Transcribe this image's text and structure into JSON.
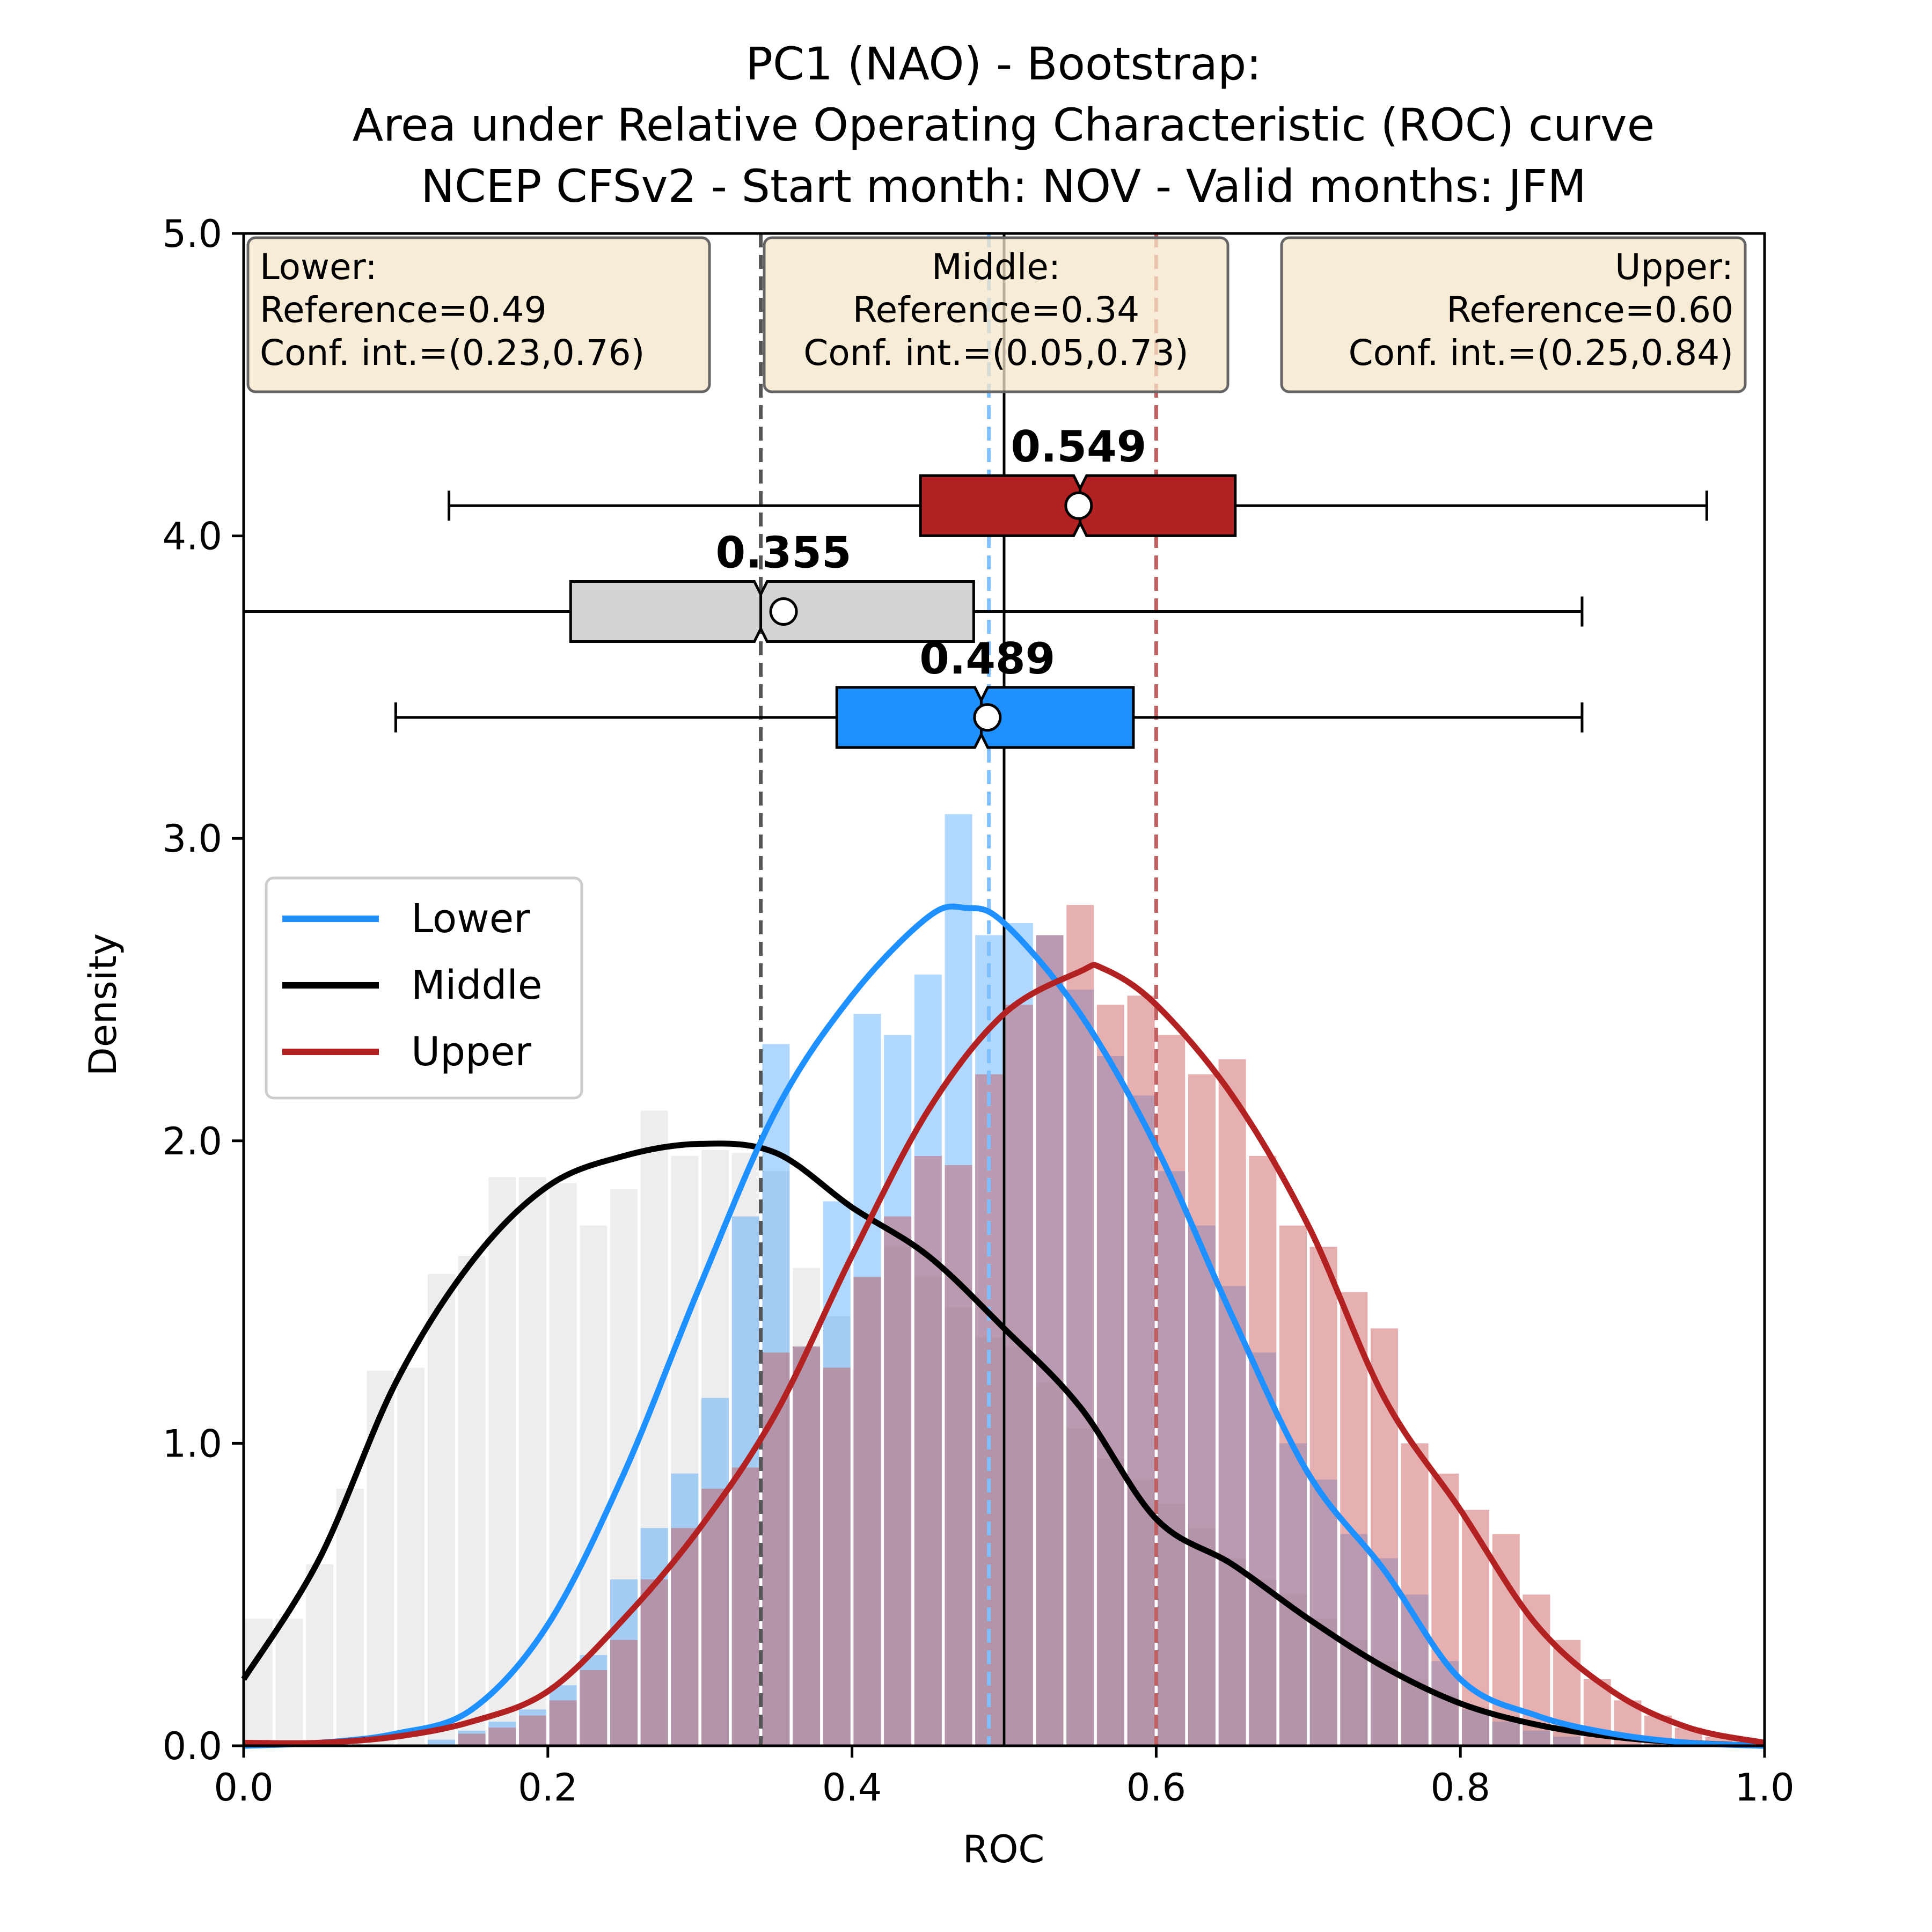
{
  "chart_data": {
    "type": "histogram+kde+boxplot",
    "title_lines": [
      "PC1 (NAO) - Bootstrap:",
      "Area under Relative Operating Characteristic (ROC) curve",
      "NCEP CFSv2 - Start month: NOV - Valid months: JFM"
    ],
    "xlabel": "ROC",
    "ylabel": "Density",
    "xlim": [
      0.0,
      1.0
    ],
    "ylim": [
      0.0,
      5.0
    ],
    "x_ticks": [
      "0.0",
      "0.2",
      "0.4",
      "0.6",
      "0.8",
      "1.0"
    ],
    "y_ticks": [
      "0.0",
      "1.0",
      "2.0",
      "3.0",
      "4.0",
      "5.0"
    ],
    "reference_line": 0.5,
    "legend": {
      "placement": "center-left",
      "entries": [
        {
          "label": "Lower",
          "color": "#1e90ff"
        },
        {
          "label": "Middle",
          "color": "#000000"
        },
        {
          "label": "Upper",
          "color": "#b22222"
        }
      ]
    },
    "info_boxes": [
      {
        "align": "left",
        "lines": [
          "Lower:",
          "Reference=0.49",
          "Conf. int.=(0.23,0.76)"
        ]
      },
      {
        "align": "center",
        "lines": [
          "Middle:",
          "Reference=0.34",
          "Conf. int.=(0.05,0.73)"
        ]
      },
      {
        "align": "right",
        "lines": [
          "Upper:",
          "Reference=0.60",
          "Conf. int.=(0.25,0.84)"
        ]
      }
    ],
    "histogram_bin_width": 0.02,
    "series": [
      {
        "name": "Middle",
        "color": "#000000",
        "hist_color": "#d3d3d3",
        "hist_opacity": 0.4,
        "reference": 0.34,
        "reference_color": "#555555",
        "hist_x": [
          0.01,
          0.03,
          0.05,
          0.07,
          0.09,
          0.11,
          0.13,
          0.15,
          0.17,
          0.19,
          0.21,
          0.23,
          0.25,
          0.27,
          0.29,
          0.31,
          0.33,
          0.35,
          0.37,
          0.39,
          0.41,
          0.43,
          0.45,
          0.47,
          0.49,
          0.51,
          0.53,
          0.55,
          0.57,
          0.59,
          0.61,
          0.63,
          0.65,
          0.67,
          0.69,
          0.71,
          0.73,
          0.75,
          0.77,
          0.79,
          0.81,
          0.83,
          0.85,
          0.87,
          0.89
        ],
        "hist_values": [
          0.42,
          0.42,
          0.6,
          0.85,
          1.24,
          1.25,
          1.56,
          1.62,
          1.88,
          1.88,
          1.86,
          1.72,
          1.84,
          2.1,
          1.95,
          1.97,
          1.96,
          1.9,
          1.58,
          1.42,
          1.55,
          1.65,
          1.55,
          1.45,
          1.35,
          1.32,
          1.2,
          1.05,
          0.95,
          0.88,
          0.8,
          0.72,
          0.62,
          0.55,
          0.5,
          0.42,
          0.35,
          0.28,
          0.22,
          0.17,
          0.13,
          0.1,
          0.07,
          0.05,
          0.03
        ],
        "kde_x": [
          0.0,
          0.05,
          0.1,
          0.15,
          0.2,
          0.25,
          0.3,
          0.35,
          0.4,
          0.45,
          0.5,
          0.55,
          0.6,
          0.65,
          0.7,
          0.75,
          0.8,
          0.85,
          0.9,
          0.95,
          1.0
        ],
        "kde_y": [
          0.22,
          0.62,
          1.2,
          1.6,
          1.85,
          1.95,
          1.99,
          1.96,
          1.78,
          1.62,
          1.38,
          1.12,
          0.75,
          0.6,
          0.42,
          0.26,
          0.14,
          0.07,
          0.03,
          0.01,
          0.0
        ],
        "box": {
          "whisker_low": 0.0,
          "q1": 0.215,
          "median": 0.34,
          "mean": 0.355,
          "q3": 0.48,
          "whisker_high": 0.88,
          "y": 3.75,
          "label": "0.355"
        }
      },
      {
        "name": "Lower",
        "color": "#1e90ff",
        "hist_color": "#1e90ff",
        "hist_opacity": 0.35,
        "reference": 0.49,
        "reference_color": "#7fbfff",
        "hist_x": [
          0.13,
          0.15,
          0.17,
          0.19,
          0.21,
          0.23,
          0.25,
          0.27,
          0.29,
          0.31,
          0.33,
          0.35,
          0.37,
          0.39,
          0.41,
          0.43,
          0.45,
          0.47,
          0.49,
          0.51,
          0.53,
          0.55,
          0.57,
          0.59,
          0.61,
          0.63,
          0.65,
          0.67,
          0.69,
          0.71,
          0.73,
          0.75,
          0.77,
          0.79,
          0.81,
          0.83,
          0.85,
          0.87
        ],
        "hist_values": [
          0.02,
          0.05,
          0.08,
          0.12,
          0.2,
          0.3,
          0.55,
          0.72,
          0.9,
          1.15,
          1.75,
          2.32,
          1.32,
          1.8,
          2.42,
          2.35,
          2.55,
          3.08,
          2.68,
          2.72,
          2.68,
          2.5,
          2.28,
          2.15,
          1.9,
          1.72,
          1.52,
          1.3,
          1.0,
          0.88,
          0.7,
          0.62,
          0.5,
          0.28,
          0.12,
          0.08,
          0.05,
          0.03
        ],
        "kde_x": [
          0.0,
          0.05,
          0.1,
          0.15,
          0.2,
          0.25,
          0.3,
          0.35,
          0.4,
          0.45,
          0.475,
          0.5,
          0.55,
          0.6,
          0.65,
          0.7,
          0.75,
          0.8,
          0.85,
          0.9,
          0.95,
          1.0
        ],
        "kde_y": [
          0.0,
          0.01,
          0.04,
          0.12,
          0.4,
          0.9,
          1.52,
          2.1,
          2.48,
          2.74,
          2.77,
          2.72,
          2.42,
          1.98,
          1.42,
          0.9,
          0.58,
          0.22,
          0.1,
          0.04,
          0.01,
          0.0
        ],
        "box": {
          "whisker_low": 0.1,
          "q1": 0.39,
          "median": 0.485,
          "mean": 0.489,
          "q3": 0.585,
          "whisker_high": 0.88,
          "y": 3.4,
          "label": "0.489"
        }
      },
      {
        "name": "Upper",
        "color": "#b22222",
        "hist_color": "#c85050",
        "hist_opacity": 0.45,
        "reference": 0.6,
        "reference_color": "#c06060",
        "hist_x": [
          0.15,
          0.17,
          0.19,
          0.21,
          0.23,
          0.25,
          0.27,
          0.29,
          0.31,
          0.33,
          0.35,
          0.37,
          0.39,
          0.41,
          0.43,
          0.45,
          0.47,
          0.49,
          0.51,
          0.53,
          0.55,
          0.57,
          0.59,
          0.61,
          0.63,
          0.65,
          0.67,
          0.69,
          0.71,
          0.73,
          0.75,
          0.77,
          0.79,
          0.81,
          0.83,
          0.85,
          0.87,
          0.89,
          0.91,
          0.93,
          0.95,
          0.97
        ],
        "hist_values": [
          0.04,
          0.06,
          0.1,
          0.15,
          0.25,
          0.35,
          0.55,
          0.72,
          0.85,
          0.92,
          1.3,
          1.32,
          1.25,
          1.55,
          1.75,
          1.95,
          1.92,
          2.22,
          2.45,
          2.68,
          2.78,
          2.45,
          2.48,
          2.35,
          2.22,
          2.27,
          1.95,
          1.72,
          1.65,
          1.5,
          1.38,
          1.0,
          0.9,
          0.78,
          0.7,
          0.5,
          0.35,
          0.22,
          0.15,
          0.1,
          0.06,
          0.03
        ],
        "kde_x": [
          0.0,
          0.05,
          0.1,
          0.15,
          0.2,
          0.25,
          0.3,
          0.35,
          0.4,
          0.45,
          0.5,
          0.55,
          0.565,
          0.6,
          0.65,
          0.7,
          0.75,
          0.8,
          0.85,
          0.9,
          0.95,
          1.0
        ],
        "kde_y": [
          0.01,
          0.01,
          0.03,
          0.08,
          0.18,
          0.42,
          0.72,
          1.1,
          1.62,
          2.1,
          2.42,
          2.56,
          2.57,
          2.45,
          2.15,
          1.72,
          1.15,
          0.78,
          0.4,
          0.18,
          0.06,
          0.01
        ],
        "box": {
          "whisker_low": 0.135,
          "q1": 0.445,
          "median": 0.55,
          "mean": 0.549,
          "q3": 0.652,
          "whisker_high": 0.962,
          "y": 4.1,
          "label": "0.549"
        }
      }
    ]
  }
}
